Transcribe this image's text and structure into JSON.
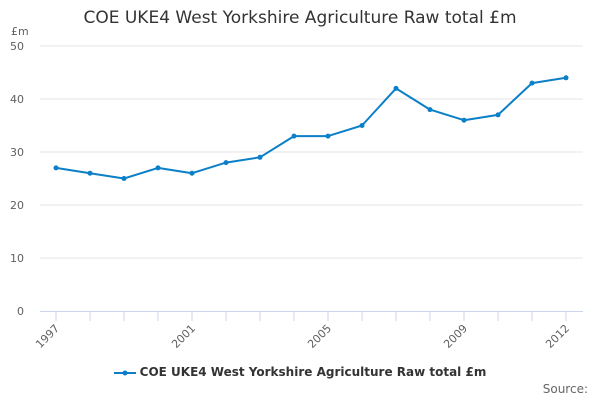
{
  "chart_data": {
    "type": "line",
    "title": "COE UKE4 West Yorkshire Agriculture Raw total £m",
    "ylabel": "£m",
    "xlabel": "",
    "x": [
      1997,
      1998,
      1999,
      2000,
      2001,
      2002,
      2003,
      2004,
      2005,
      2006,
      2007,
      2008,
      2009,
      2010,
      2011,
      2012
    ],
    "x_tick_labels": [
      "1997",
      "2001",
      "2005",
      "2009",
      "2012"
    ],
    "y_ticks": [
      0,
      10,
      20,
      30,
      40,
      50
    ],
    "ylim": [
      0,
      50
    ],
    "grid": "horizontal",
    "legend_position": "bottom",
    "series": [
      {
        "name": "COE UKE4 West Yorkshire Agriculture Raw total £m",
        "color": "#0b7fc7",
        "values": [
          27,
          26,
          25,
          27,
          26,
          28,
          29,
          33,
          33,
          35,
          42,
          38,
          36,
          37,
          43,
          44
        ]
      }
    ]
  },
  "source_label": "Source:"
}
